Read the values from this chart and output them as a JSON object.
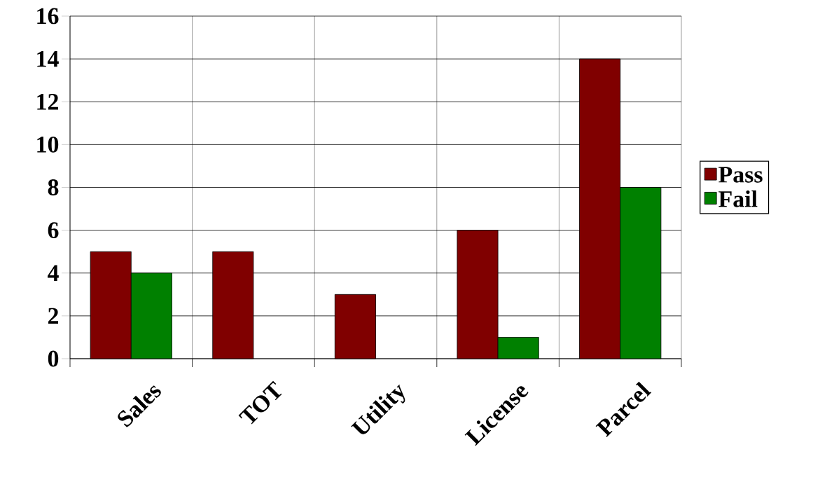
{
  "chart_data": {
    "type": "bar",
    "categories": [
      "Sales",
      "TOT",
      "Utility",
      "License",
      "Parcel"
    ],
    "series": [
      {
        "name": "Pass",
        "color": "#800000",
        "values": [
          5,
          5,
          3,
          6,
          14
        ]
      },
      {
        "name": "Fail",
        "color": "#008000",
        "values": [
          4,
          0,
          0,
          1,
          8
        ]
      }
    ],
    "ylim": [
      0,
      16
    ],
    "yticks": [
      0,
      2,
      4,
      6,
      8,
      10,
      12,
      14,
      16
    ],
    "grid": true,
    "legend": "right"
  }
}
